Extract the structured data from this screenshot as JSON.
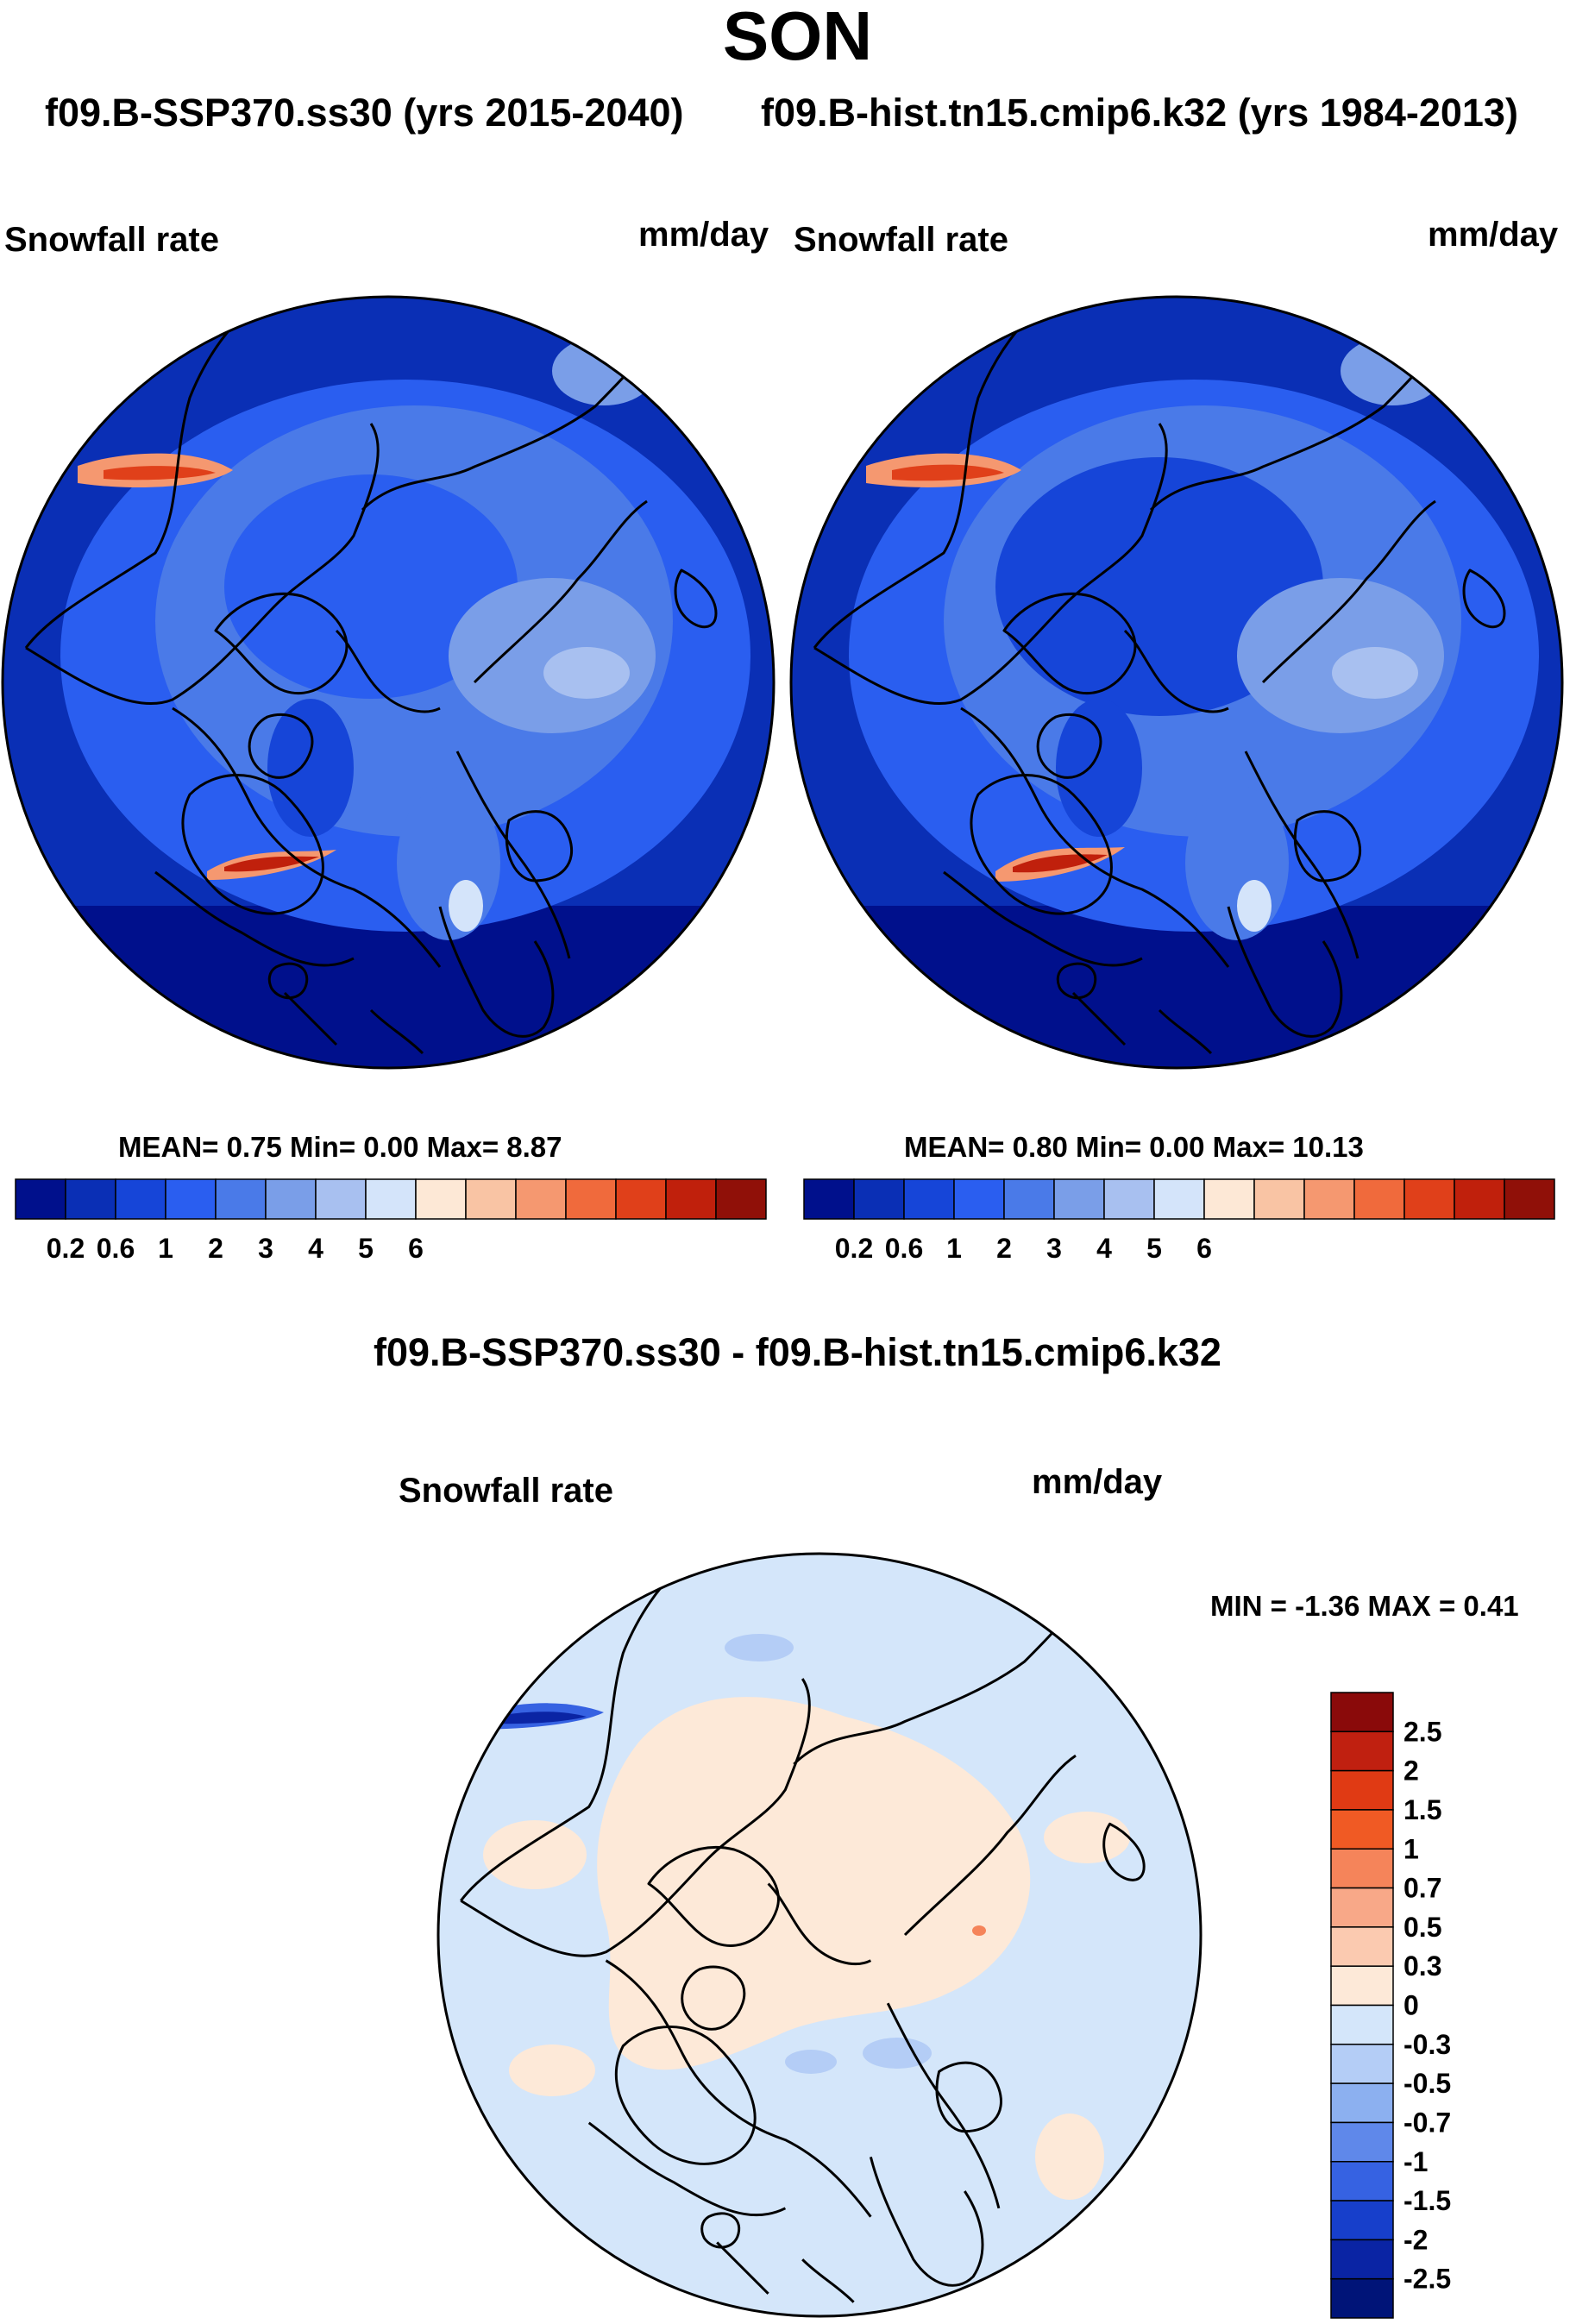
{
  "page": {
    "season": "SON",
    "case_left": "f09.B-SSP370.ss30 (yrs 2015-2040)",
    "case_right": "f09.B-hist.tn15.cmip6.k32 (yrs 1984-2013)",
    "diff_title": "f09.B-SSP370.ss30 - f09.B-hist.tn15.cmip6.k32"
  },
  "panels": [
    {
      "variable": "Snowfall rate",
      "units": "mm/day",
      "stats": "MEAN=   0.75  Min=   0.00  Max=   8.87"
    },
    {
      "variable": "Snowfall rate",
      "units": "mm/day",
      "stats": "MEAN=   0.80  Min=   0.00  Max=  10.13"
    }
  ],
  "diff_panel": {
    "variable": "Snowfall rate",
    "units": "mm/day",
    "minmax": "MIN =  -1.36 MAX =   0.41"
  },
  "colorbar_abs": {
    "labels": [
      "0.2",
      "0.6",
      "1",
      "2",
      "3",
      "4",
      "5",
      "6"
    ],
    "colors": [
      "#00108c",
      "#0a2fb5",
      "#1645d8",
      "#2a5ef0",
      "#4a7ae8",
      "#7a9ee8",
      "#a8c0f0",
      "#d4e4fa",
      "#fde8d6",
      "#f9c4a4",
      "#f59870",
      "#f06a3c",
      "#e0401a",
      "#c0200c",
      "#901008"
    ]
  },
  "colorbar_diff": {
    "labels": [
      "2.5",
      "2",
      "1.5",
      "1",
      "0.7",
      "0.5",
      "0.3",
      "0",
      "-0.3",
      "-0.5",
      "-0.7",
      "-1",
      "-1.5",
      "-2",
      "-2.5"
    ],
    "colors": [
      "#8a0a0a",
      "#c02010",
      "#e03a14",
      "#f05a24",
      "#f5845a",
      "#f8a888",
      "#fbcab0",
      "#fde9d8",
      "#d4e6fa",
      "#b4cdf6",
      "#8cb0f0",
      "#5f88ea",
      "#3662e2",
      "#173fcb",
      "#0a24a4",
      "#001478"
    ]
  }
}
